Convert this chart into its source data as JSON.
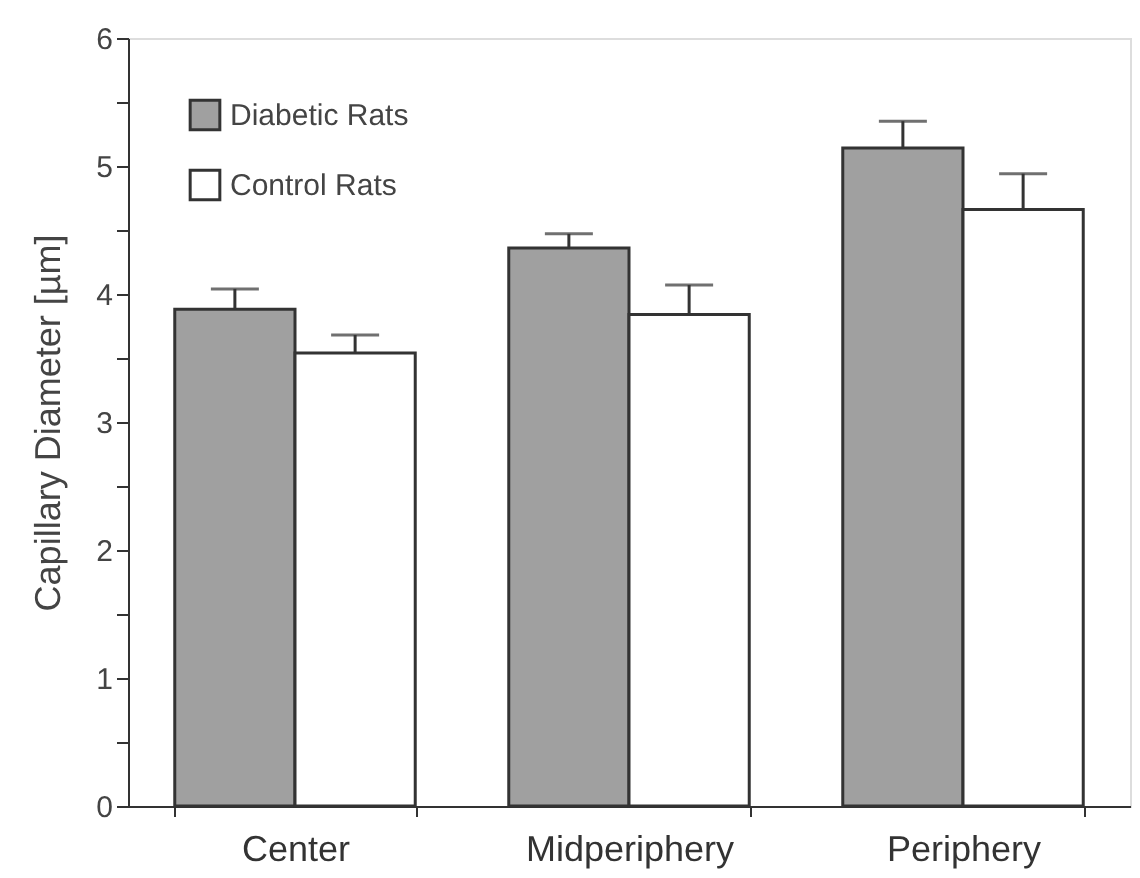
{
  "chart_data": {
    "type": "bar",
    "ylabel": "Capillary  Diameter  [µm]",
    "categories": [
      "Center",
      "Midperiphery",
      "Periphery"
    ],
    "series": [
      {
        "name": "Diabetic Rats",
        "color": "#a0a0a0",
        "values": [
          3.88,
          4.36,
          5.14
        ],
        "errors": [
          [
            3.88,
            4.04
          ],
          [
            4.36,
            4.47
          ],
          [
            5.14,
            5.35
          ]
        ]
      },
      {
        "name": "Control Rats",
        "color": "#ffffff",
        "values": [
          3.54,
          3.84,
          4.66
        ],
        "errors": [
          [
            3.54,
            3.68
          ],
          [
            3.84,
            4.07
          ],
          [
            4.66,
            4.94
          ]
        ]
      }
    ],
    "ylim": [
      0,
      6
    ],
    "yticks": [
      0,
      {
        "value": 0.5,
        "label": null
      },
      1,
      {
        "value": 1.5,
        "label": null
      },
      2,
      {
        "value": 2.5,
        "label": null
      },
      3,
      {
        "value": 3.5,
        "label": null
      },
      4,
      {
        "value": 4.5,
        "label": null
      },
      5,
      {
        "value": 5.5,
        "label": null
      },
      6
    ],
    "grid": false,
    "legend": "top left"
  }
}
